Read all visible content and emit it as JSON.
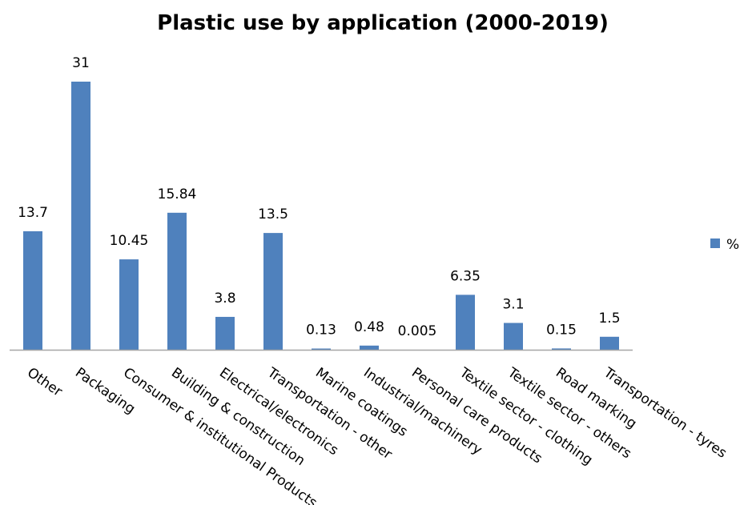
{
  "chart_data": {
    "type": "bar",
    "title": "Plastic use by application (2000-2019)",
    "categories": [
      "Other",
      "Packaging",
      "Consumer & institutional Products",
      "Building & construction",
      "Electrical/electronics",
      "Transportation - other",
      "Marine coatings",
      "Industrial/machinery",
      "Personal care products",
      "Textile sector - clothing",
      "Textile sector - others",
      "Road marking",
      "Transportation - tyres"
    ],
    "series": [
      {
        "name": "%",
        "values": [
          13.7,
          31,
          10.45,
          15.84,
          3.8,
          13.5,
          0.13,
          0.48,
          0.005,
          6.35,
          3.1,
          0.15,
          1.5
        ],
        "labels": [
          "13.7",
          "31",
          "10.45",
          "15.84",
          "3.8",
          "13.5",
          "0.13",
          "0.48",
          "0.005",
          "6.35",
          "3.1",
          "0.15",
          "1.5"
        ],
        "color": "#4f81bd"
      }
    ],
    "ylim": [
      0,
      31
    ],
    "grid": false,
    "legend_position": "right"
  }
}
